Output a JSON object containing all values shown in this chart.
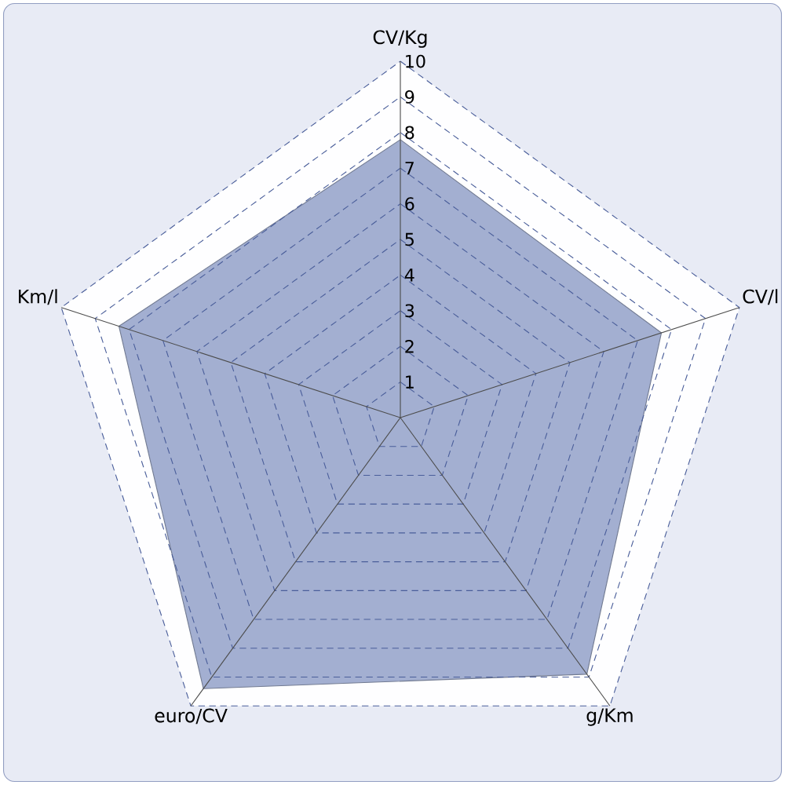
{
  "chart_data": {
    "type": "radar",
    "categories": [
      "CV/Kg",
      "CV/l",
      "g/Km",
      "euro/CV",
      "Km/l"
    ],
    "series": [
      {
        "color": "#a3afd1",
        "values": [
          7.8,
          7.7,
          8.9,
          9.4,
          8.3
        ]
      }
    ],
    "ylim": [
      0,
      10
    ],
    "yticks": [
      1,
      2,
      3,
      4,
      5,
      6,
      7,
      8,
      9,
      10
    ],
    "grid": true
  }
}
